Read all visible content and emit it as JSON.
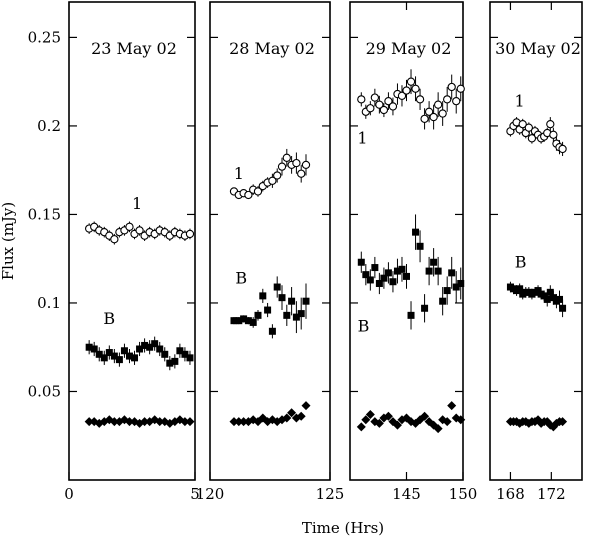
{
  "chart_data": {
    "type": "scatter",
    "xlabel": "Time (Hrs)",
    "ylabel": "Flux (mJy)",
    "ylim": [
      0,
      0.27
    ],
    "yticks": [
      0.05,
      0.1,
      0.15,
      0.2,
      0.25
    ],
    "ytick_labels": [
      "0.05",
      "0.1",
      "0.15",
      "0.2",
      "0.25"
    ],
    "grid": false,
    "legend": "none",
    "panels": [
      {
        "title": "23 May 02",
        "xlim": [
          0,
          5
        ],
        "xticks": [
          0,
          5
        ],
        "xtick_labels": [
          "0",
          "5"
        ],
        "labels": [
          {
            "text": "1",
            "x": 2.7,
            "y": 0.153
          },
          {
            "text": "B",
            "x": 1.6,
            "y": 0.088
          }
        ],
        "series": [
          {
            "name": "1",
            "marker": "open-circle",
            "x": [
              0.8,
              1.0,
              1.2,
              1.4,
              1.6,
              1.8,
              2.0,
              2.2,
              2.4,
              2.6,
              2.8,
              3.0,
              3.2,
              3.4,
              3.6,
              3.8,
              4.0,
              4.2,
              4.4,
              4.6,
              4.8
            ],
            "y": [
              0.142,
              0.143,
              0.141,
              0.14,
              0.138,
              0.136,
              0.14,
              0.141,
              0.143,
              0.139,
              0.141,
              0.138,
              0.14,
              0.139,
              0.141,
              0.14,
              0.138,
              0.14,
              0.139,
              0.138,
              0.139
            ],
            "err": [
              0.003,
              0.003,
              0.003,
              0.003,
              0.003,
              0.003,
              0.003,
              0.003,
              0.003,
              0.003,
              0.003,
              0.003,
              0.003,
              0.003,
              0.003,
              0.003,
              0.003,
              0.003,
              0.003,
              0.003,
              0.003
            ]
          },
          {
            "name": "B",
            "marker": "filled-square",
            "x": [
              0.8,
              1.0,
              1.2,
              1.4,
              1.6,
              1.8,
              2.0,
              2.2,
              2.4,
              2.6,
              2.8,
              3.0,
              3.2,
              3.4,
              3.6,
              3.8,
              4.0,
              4.2,
              4.4,
              4.6,
              4.8
            ],
            "y": [
              0.075,
              0.074,
              0.071,
              0.069,
              0.072,
              0.07,
              0.068,
              0.073,
              0.07,
              0.069,
              0.074,
              0.076,
              0.075,
              0.077,
              0.074,
              0.071,
              0.066,
              0.067,
              0.073,
              0.071,
              0.069
            ],
            "err": [
              0.004,
              0.004,
              0.004,
              0.004,
              0.004,
              0.004,
              0.004,
              0.004,
              0.004,
              0.004,
              0.004,
              0.004,
              0.004,
              0.004,
              0.004,
              0.004,
              0.004,
              0.004,
              0.004,
              0.004,
              0.004
            ]
          },
          {
            "name": "",
            "marker": "filled-diamond",
            "x": [
              0.8,
              1.0,
              1.2,
              1.4,
              1.6,
              1.8,
              2.0,
              2.2,
              2.4,
              2.6,
              2.8,
              3.0,
              3.2,
              3.4,
              3.6,
              3.8,
              4.0,
              4.2,
              4.4,
              4.6,
              4.8
            ],
            "y": [
              0.033,
              0.033,
              0.032,
              0.033,
              0.034,
              0.033,
              0.033,
              0.034,
              0.033,
              0.033,
              0.032,
              0.033,
              0.033,
              0.034,
              0.033,
              0.033,
              0.032,
              0.033,
              0.034,
              0.033,
              0.033
            ],
            "err": [
              0.002,
              0.002,
              0.002,
              0.002,
              0.002,
              0.002,
              0.002,
              0.002,
              0.002,
              0.002,
              0.002,
              0.002,
              0.002,
              0.002,
              0.002,
              0.002,
              0.002,
              0.002,
              0.002,
              0.002,
              0.002
            ]
          }
        ]
      },
      {
        "title": "28 May 02",
        "xlim": [
          120,
          125
        ],
        "xticks": [
          120,
          125
        ],
        "xtick_labels": [
          "120",
          "125"
        ],
        "labels": [
          {
            "text": "1",
            "x": 121.2,
            "y": 0.17
          },
          {
            "text": "B",
            "x": 121.3,
            "y": 0.111
          }
        ],
        "series": [
          {
            "name": "1",
            "marker": "open-circle",
            "x": [
              121.0,
              121.2,
              121.4,
              121.6,
              121.8,
              122.0,
              122.2,
              122.4,
              122.6,
              122.8,
              123.0,
              123.2,
              123.4,
              123.6,
              123.8,
              124.0
            ],
            "y": [
              0.163,
              0.161,
              0.162,
              0.161,
              0.164,
              0.163,
              0.166,
              0.168,
              0.169,
              0.172,
              0.177,
              0.182,
              0.178,
              0.179,
              0.173,
              0.178
            ],
            "err": [
              0.002,
              0.002,
              0.002,
              0.002,
              0.003,
              0.003,
              0.003,
              0.003,
              0.004,
              0.004,
              0.005,
              0.005,
              0.005,
              0.006,
              0.005,
              0.006
            ]
          },
          {
            "name": "B",
            "marker": "filled-square",
            "x": [
              121.0,
              121.2,
              121.4,
              121.6,
              121.8,
              122.0,
              122.2,
              122.4,
              122.6,
              122.8,
              123.0,
              123.2,
              123.4,
              123.6,
              123.8,
              124.0
            ],
            "y": [
              0.09,
              0.09,
              0.091,
              0.09,
              0.089,
              0.093,
              0.104,
              0.096,
              0.084,
              0.109,
              0.103,
              0.093,
              0.101,
              0.092,
              0.094,
              0.101
            ],
            "err": [
              0.002,
              0.002,
              0.002,
              0.002,
              0.003,
              0.003,
              0.004,
              0.004,
              0.004,
              0.006,
              0.007,
              0.006,
              0.008,
              0.009,
              0.009,
              0.01
            ]
          },
          {
            "name": "",
            "marker": "filled-diamond",
            "x": [
              121.0,
              121.2,
              121.4,
              121.6,
              121.8,
              122.0,
              122.2,
              122.4,
              122.6,
              122.8,
              123.0,
              123.2,
              123.4,
              123.6,
              123.8,
              124.0
            ],
            "y": [
              0.033,
              0.033,
              0.033,
              0.033,
              0.034,
              0.033,
              0.035,
              0.033,
              0.034,
              0.033,
              0.034,
              0.035,
              0.038,
              0.035,
              0.036,
              0.042
            ],
            "err": [
              0.002,
              0.002,
              0.002,
              0.002,
              0.002,
              0.002,
              0.002,
              0.002,
              0.002,
              0.002,
              0.002,
              0.002,
              0.002,
              0.002,
              0.002,
              0.002
            ]
          }
        ]
      },
      {
        "title": "29 May 02",
        "xlim": [
          140,
          150
        ],
        "xticks": [
          145,
          150
        ],
        "xtick_labels": [
          "145",
          "150"
        ],
        "labels": [
          {
            "text": "1",
            "x": 141.1,
            "y": 0.19
          },
          {
            "text": "B",
            "x": 141.2,
            "y": 0.084
          }
        ],
        "series": [
          {
            "name": "1",
            "marker": "open-circle",
            "x": [
              141.0,
              141.4,
              141.8,
              142.2,
              142.6,
              143.0,
              143.4,
              143.8,
              144.2,
              144.6,
              145.0,
              145.4,
              145.8,
              146.2,
              146.6,
              147.0,
              147.4,
              147.8,
              148.2,
              148.6,
              149.0,
              149.4,
              149.8
            ],
            "y": [
              0.215,
              0.208,
              0.21,
              0.216,
              0.212,
              0.209,
              0.214,
              0.211,
              0.218,
              0.217,
              0.22,
              0.225,
              0.221,
              0.215,
              0.204,
              0.208,
              0.205,
              0.212,
              0.207,
              0.215,
              0.222,
              0.214,
              0.221
            ],
            "err": [
              0.004,
              0.004,
              0.004,
              0.005,
              0.005,
              0.004,
              0.005,
              0.005,
              0.006,
              0.006,
              0.006,
              0.007,
              0.007,
              0.006,
              0.006,
              0.006,
              0.007,
              0.007,
              0.007,
              0.007,
              0.007,
              0.007,
              0.007
            ]
          },
          {
            "name": "B",
            "marker": "filled-square",
            "x": [
              141.0,
              141.4,
              141.8,
              142.2,
              142.6,
              143.0,
              143.4,
              143.8,
              144.2,
              144.6,
              145.0,
              145.4,
              145.8,
              146.2,
              146.6,
              147.0,
              147.4,
              147.8,
              148.2,
              148.6,
              149.0,
              149.4,
              149.8
            ],
            "y": [
              0.123,
              0.116,
              0.113,
              0.12,
              0.111,
              0.114,
              0.117,
              0.112,
              0.118,
              0.119,
              0.115,
              0.093,
              0.14,
              0.132,
              0.097,
              0.118,
              0.123,
              0.118,
              0.101,
              0.107,
              0.117,
              0.109,
              0.111
            ],
            "err": [
              0.006,
              0.006,
              0.006,
              0.006,
              0.006,
              0.006,
              0.006,
              0.006,
              0.007,
              0.007,
              0.007,
              0.008,
              0.01,
              0.009,
              0.008,
              0.008,
              0.008,
              0.008,
              0.008,
              0.008,
              0.009,
              0.009,
              0.009
            ]
          },
          {
            "name": "",
            "marker": "filled-diamond",
            "x": [
              141.0,
              141.4,
              141.8,
              142.2,
              142.6,
              143.0,
              143.4,
              143.8,
              144.2,
              144.6,
              145.0,
              145.4,
              145.8,
              146.2,
              146.6,
              147.0,
              147.4,
              147.8,
              148.2,
              148.6,
              149.0,
              149.4,
              149.8
            ],
            "y": [
              0.03,
              0.034,
              0.037,
              0.033,
              0.032,
              0.035,
              0.036,
              0.033,
              0.031,
              0.034,
              0.035,
              0.033,
              0.032,
              0.034,
              0.036,
              0.033,
              0.031,
              0.029,
              0.034,
              0.033,
              0.042,
              0.035,
              0.034
            ],
            "err": [
              0.002,
              0.002,
              0.002,
              0.002,
              0.002,
              0.002,
              0.002,
              0.002,
              0.002,
              0.002,
              0.002,
              0.002,
              0.002,
              0.002,
              0.002,
              0.002,
              0.002,
              0.002,
              0.002,
              0.002,
              0.002,
              0.002,
              0.002
            ]
          }
        ]
      },
      {
        "title": "30 May 02",
        "xlim": [
          166,
          175
        ],
        "xticks": [
          168,
          172
        ],
        "xtick_labels": [
          "168",
          "172"
        ],
        "labels": [
          {
            "text": "1",
            "x": 168.9,
            "y": 0.211
          },
          {
            "text": "B",
            "x": 169.0,
            "y": 0.12
          }
        ],
        "series": [
          {
            "name": "1",
            "marker": "open-circle",
            "x": [
              168.0,
              168.3,
              168.6,
              168.9,
              169.2,
              169.5,
              169.8,
              170.1,
              170.4,
              170.7,
              171.0,
              171.3,
              171.6,
              171.9,
              172.2,
              172.5,
              172.8,
              173.1
            ],
            "y": [
              0.197,
              0.2,
              0.202,
              0.198,
              0.201,
              0.196,
              0.199,
              0.193,
              0.197,
              0.195,
              0.193,
              0.194,
              0.196,
              0.201,
              0.195,
              0.19,
              0.188,
              0.187
            ],
            "err": [
              0.003,
              0.003,
              0.003,
              0.003,
              0.003,
              0.003,
              0.003,
              0.003,
              0.003,
              0.003,
              0.003,
              0.003,
              0.003,
              0.004,
              0.004,
              0.004,
              0.004,
              0.004
            ]
          },
          {
            "name": "B",
            "marker": "filled-square",
            "x": [
              168.0,
              168.3,
              168.6,
              168.9,
              169.2,
              169.5,
              169.8,
              170.1,
              170.4,
              170.7,
              171.0,
              171.3,
              171.6,
              171.9,
              172.2,
              172.5,
              172.8,
              173.1
            ],
            "y": [
              0.109,
              0.108,
              0.107,
              0.108,
              0.105,
              0.106,
              0.106,
              0.105,
              0.106,
              0.107,
              0.105,
              0.104,
              0.102,
              0.106,
              0.103,
              0.101,
              0.102,
              0.097
            ],
            "err": [
              0.003,
              0.003,
              0.003,
              0.003,
              0.003,
              0.003,
              0.003,
              0.003,
              0.003,
              0.003,
              0.003,
              0.003,
              0.004,
              0.004,
              0.004,
              0.004,
              0.005,
              0.005
            ]
          },
          {
            "name": "",
            "marker": "filled-diamond",
            "x": [
              168.0,
              168.3,
              168.6,
              168.9,
              169.2,
              169.5,
              169.8,
              170.1,
              170.4,
              170.7,
              171.0,
              171.3,
              171.6,
              171.9,
              172.2,
              172.5,
              172.8,
              173.1
            ],
            "y": [
              0.033,
              0.033,
              0.033,
              0.032,
              0.033,
              0.033,
              0.032,
              0.033,
              0.033,
              0.034,
              0.032,
              0.033,
              0.033,
              0.031,
              0.03,
              0.032,
              0.033,
              0.033
            ],
            "err": [
              0.002,
              0.002,
              0.002,
              0.002,
              0.002,
              0.002,
              0.002,
              0.002,
              0.002,
              0.002,
              0.002,
              0.002,
              0.002,
              0.002,
              0.002,
              0.002,
              0.002,
              0.002
            ]
          }
        ]
      }
    ]
  }
}
